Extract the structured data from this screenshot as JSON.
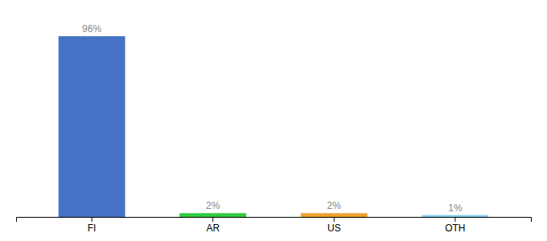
{
  "chart_data": {
    "type": "bar",
    "categories": [
      "FI",
      "AR",
      "US",
      "OTH"
    ],
    "values": [
      96,
      2,
      2,
      1
    ],
    "value_labels": [
      "96%",
      "2%",
      "2%",
      "1%"
    ],
    "colors": [
      "#4472c4",
      "#2ecc40",
      "#f0a030",
      "#87ceeb"
    ],
    "ylim": [
      0,
      105
    ],
    "data_labels": true,
    "tick_labels": "x",
    "grid": false
  }
}
